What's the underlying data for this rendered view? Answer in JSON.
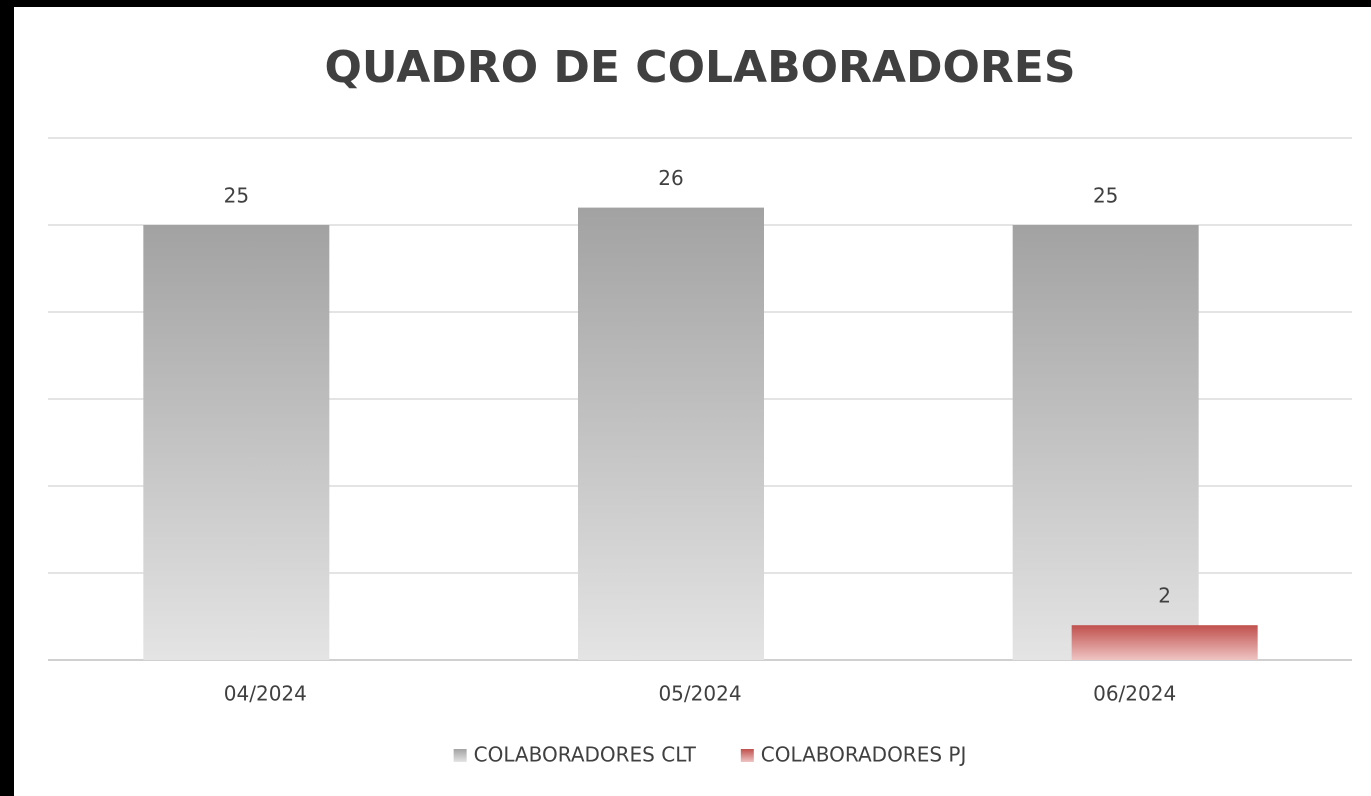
{
  "chart_data": {
    "type": "bar",
    "title": "QUADRO DE COLABORADORES",
    "categories": [
      "04/2024",
      "05/2024",
      "06/2024"
    ],
    "series": [
      {
        "name": "COLABORADORES CLT",
        "color": "#a5a5a5",
        "values": [
          25,
          26,
          25
        ]
      },
      {
        "name": "COLABORADORES PJ",
        "color": "#c0504d",
        "values": [
          null,
          null,
          2
        ]
      }
    ],
    "ylim": [
      0,
      30
    ],
    "yticks": [
      0,
      5,
      10,
      15,
      20,
      25,
      30
    ],
    "grid": true,
    "legend": "bottom"
  }
}
